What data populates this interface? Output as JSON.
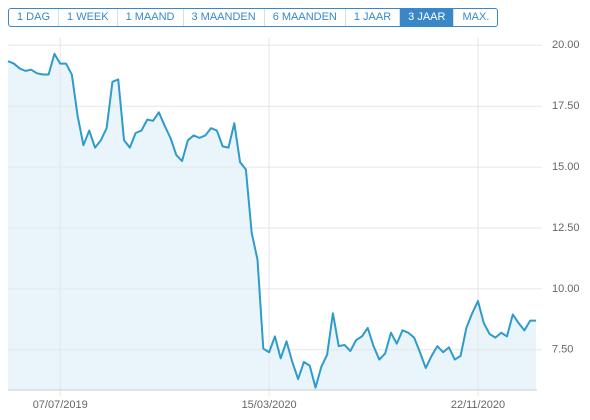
{
  "buttons": [
    {
      "label": "1 DAG",
      "active": false
    },
    {
      "label": "1 WEEK",
      "active": false
    },
    {
      "label": "1 MAAND",
      "active": false
    },
    {
      "label": "3 MAANDEN",
      "active": false
    },
    {
      "label": "6 MAANDEN",
      "active": false
    },
    {
      "label": "1 JAAR",
      "active": false
    },
    {
      "label": "3 JAAR",
      "active": true
    },
    {
      "label": "MAX.",
      "active": false
    }
  ],
  "chart_data": {
    "type": "area",
    "color": "#2f9bcc",
    "fill": "#e9f4fb",
    "grid": true,
    "x": [
      "2019-05-05",
      "2019-05-12",
      "2019-05-19",
      "2019-05-26",
      "2019-06-02",
      "2019-06-09",
      "2019-06-16",
      "2019-06-23",
      "2019-06-30",
      "2019-07-07",
      "2019-07-14",
      "2019-07-21",
      "2019-07-28",
      "2019-08-04",
      "2019-08-11",
      "2019-08-18",
      "2019-08-25",
      "2019-09-01",
      "2019-09-08",
      "2019-09-15",
      "2019-09-22",
      "2019-09-29",
      "2019-10-06",
      "2019-10-13",
      "2019-10-20",
      "2019-10-27",
      "2019-11-03",
      "2019-11-10",
      "2019-11-17",
      "2019-11-24",
      "2019-12-01",
      "2019-12-08",
      "2019-12-15",
      "2019-12-22",
      "2019-12-29",
      "2020-01-05",
      "2020-01-12",
      "2020-01-19",
      "2020-01-26",
      "2020-02-02",
      "2020-02-09",
      "2020-02-16",
      "2020-02-23",
      "2020-03-01",
      "2020-03-08",
      "2020-03-15",
      "2020-03-22",
      "2020-03-29",
      "2020-04-05",
      "2020-04-12",
      "2020-04-19",
      "2020-04-26",
      "2020-05-03",
      "2020-05-10",
      "2020-05-17",
      "2020-05-24",
      "2020-05-31",
      "2020-06-07",
      "2020-06-14",
      "2020-06-21",
      "2020-06-28",
      "2020-07-05",
      "2020-07-12",
      "2020-07-19",
      "2020-07-26",
      "2020-08-02",
      "2020-08-09",
      "2020-08-16",
      "2020-08-23",
      "2020-08-30",
      "2020-09-06",
      "2020-09-13",
      "2020-09-20",
      "2020-09-27",
      "2020-10-04",
      "2020-10-11",
      "2020-10-18",
      "2020-10-25",
      "2020-11-01",
      "2020-11-08",
      "2020-11-15",
      "2020-11-22",
      "2020-11-29",
      "2020-12-06",
      "2020-12-13",
      "2020-12-20",
      "2020-12-27",
      "2021-01-03",
      "2021-01-10",
      "2021-01-17",
      "2021-01-24",
      "2021-01-31"
    ],
    "values": [
      19.35,
      19.25,
      19.05,
      18.95,
      19.0,
      18.85,
      18.8,
      18.8,
      19.65,
      19.25,
      19.25,
      18.8,
      17.1,
      15.9,
      16.5,
      15.8,
      16.1,
      16.6,
      18.5,
      18.6,
      16.1,
      15.8,
      16.4,
      16.5,
      16.95,
      16.9,
      17.25,
      16.7,
      16.2,
      15.5,
      15.25,
      16.1,
      16.3,
      16.2,
      16.3,
      16.6,
      16.5,
      15.85,
      15.8,
      16.8,
      15.2,
      14.9,
      12.3,
      11.2,
      7.55,
      7.4,
      8.05,
      7.15,
      7.85,
      7.0,
      6.3,
      7.0,
      6.85,
      5.95,
      6.8,
      7.3,
      9.0,
      7.65,
      7.7,
      7.45,
      7.9,
      8.05,
      8.4,
      7.65,
      7.1,
      7.35,
      8.2,
      7.75,
      8.3,
      8.2,
      8.0,
      7.4,
      6.75,
      7.25,
      7.65,
      7.4,
      7.6,
      7.1,
      7.25,
      8.4,
      9.0,
      9.5,
      8.6,
      8.15,
      8.0,
      8.2,
      8.05,
      8.95,
      8.6,
      8.3,
      8.7,
      8.7
    ],
    "xlim": [
      "2019-05-05",
      "2021-01-31"
    ],
    "xticks": [
      {
        "value": "2019-07-07",
        "label": "07/07/2019"
      },
      {
        "value": "2020-03-15",
        "label": "15/03/2020"
      },
      {
        "value": "2020-11-22",
        "label": "22/11/2020"
      }
    ],
    "ylim": [
      5.85,
      20.3
    ],
    "yticks": [
      {
        "value": 7.5,
        "label": "7.50"
      },
      {
        "value": 10,
        "label": "10.00"
      },
      {
        "value": 12.5,
        "label": "12.50"
      },
      {
        "value": 15,
        "label": "15.00"
      },
      {
        "value": 17.5,
        "label": "17.50"
      },
      {
        "value": 20,
        "label": "20.00"
      }
    ]
  }
}
